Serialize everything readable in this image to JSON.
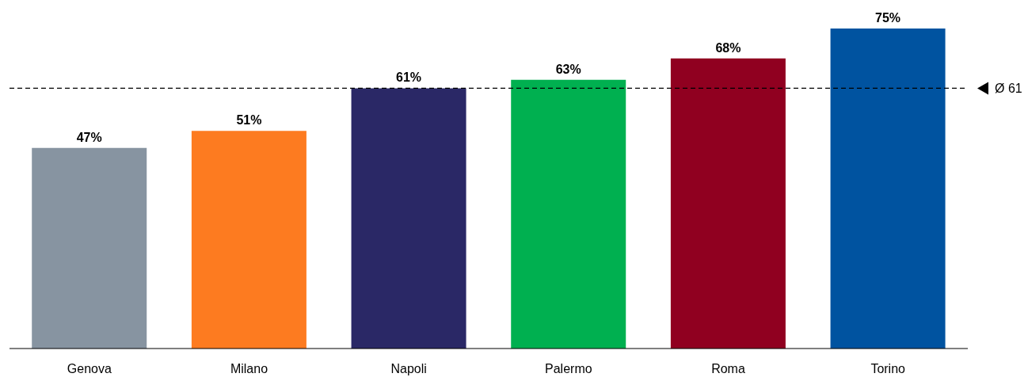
{
  "chart_data": {
    "type": "bar",
    "categories": [
      "Genova",
      "Milano",
      "Napoli",
      "Palermo",
      "Roma",
      "Torino"
    ],
    "values": [
      47,
      51,
      61,
      63,
      68,
      75
    ],
    "colors": [
      "#8794a1",
      "#fd7b20",
      "#2a2866",
      "#00b050",
      "#900020",
      "#0053a0"
    ],
    "value_labels": [
      "47%",
      "51%",
      "61%",
      "63%",
      "68%",
      "75%"
    ],
    "ref_lines": [
      {
        "axis": "y",
        "value": 61,
        "label": "Ø 61",
        "color": "#000000",
        "line_style": "dashed"
      }
    ],
    "grid": false,
    "legend": false
  }
}
